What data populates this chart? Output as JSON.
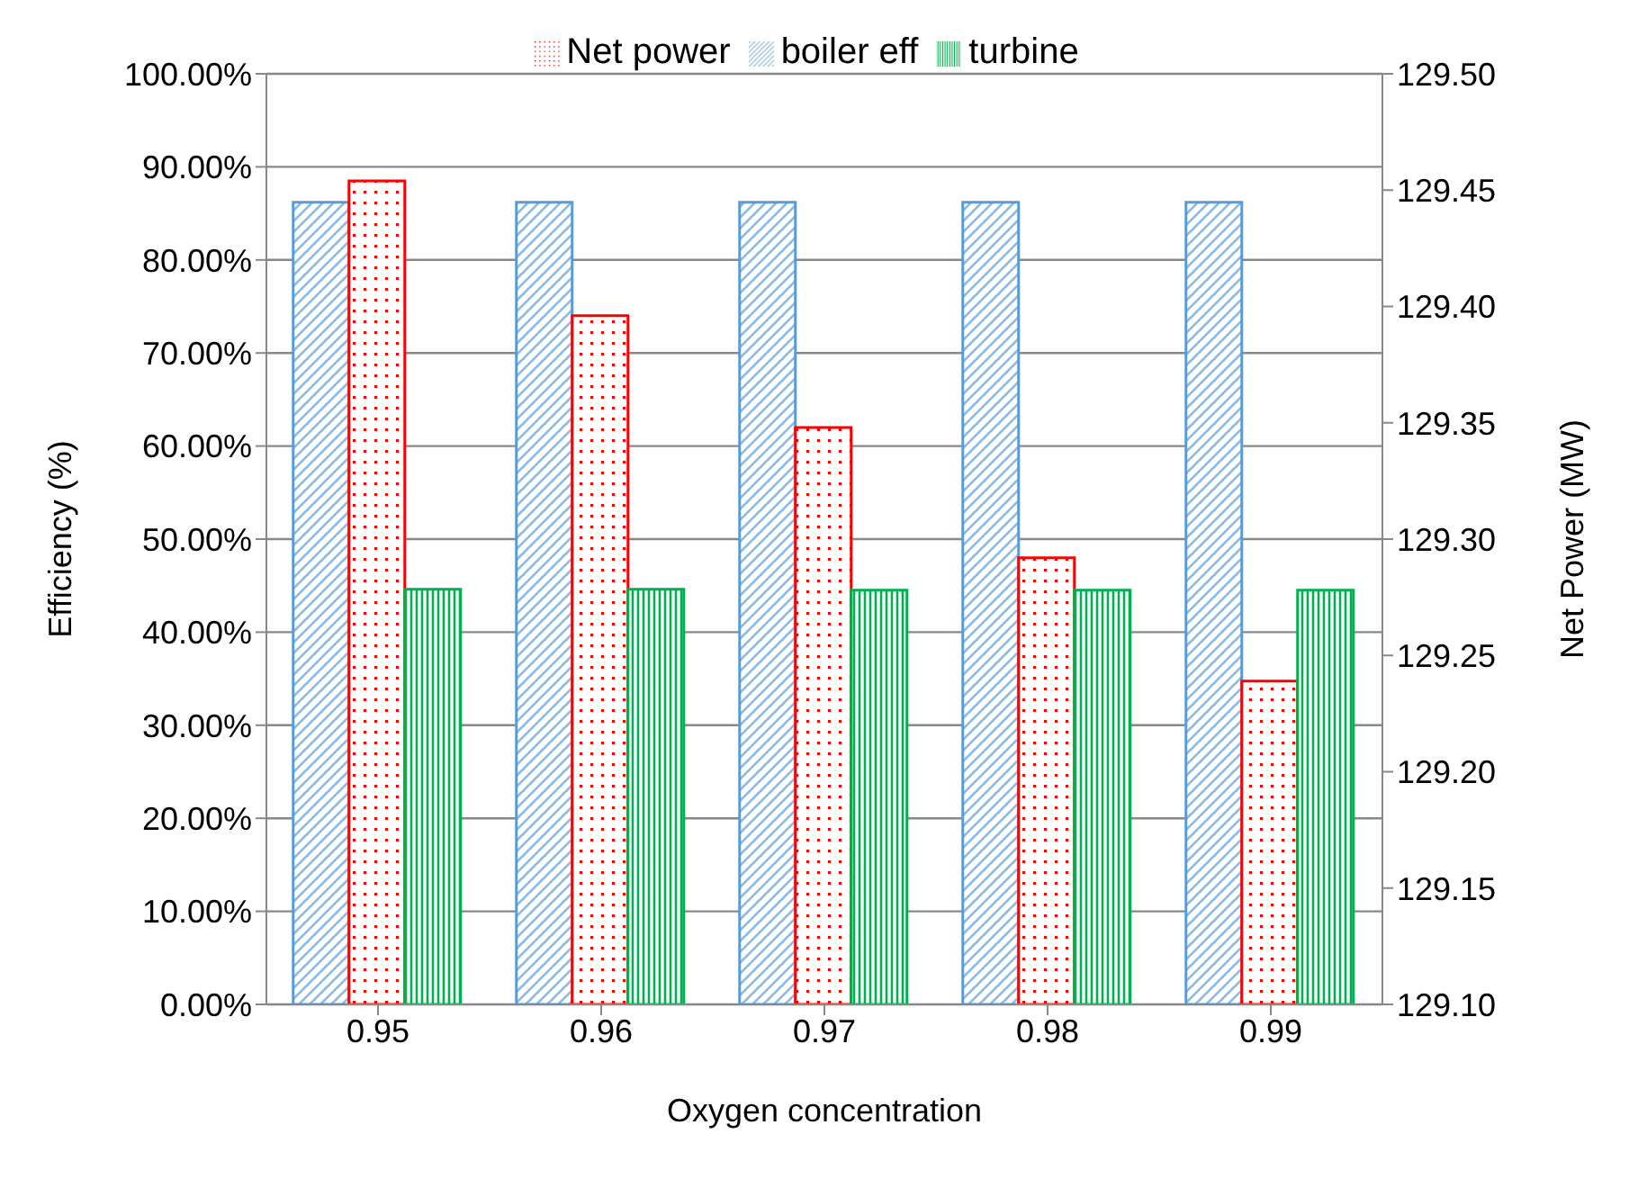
{
  "chart_data": {
    "type": "bar",
    "xlabel": "Oxygen concentration",
    "ylabel": "Efficiency (%)",
    "y2label": "Net Power (MW)",
    "categories": [
      "0.95",
      "0.96",
      "0.97",
      "0.98",
      "0.99"
    ],
    "series": [
      {
        "name": "boiler eff",
        "color": "#5b9bd5",
        "values": [
          86.2,
          86.2,
          86.2,
          86.2,
          86.2
        ]
      },
      {
        "name": "Net power",
        "color": "#ff0000",
        "axis": "y2",
        "values": [
          129.454,
          129.396,
          129.348,
          129.292,
          129.239
        ]
      },
      {
        "name": "turbine",
        "color": "#00b050",
        "values": [
          44.6,
          44.6,
          44.5,
          44.5,
          44.5
        ]
      }
    ],
    "ylim": [
      0,
      100
    ],
    "yticks": [
      {
        "value": 0,
        "label": "0.00%"
      },
      {
        "value": 10,
        "label": "10.00%"
      },
      {
        "value": 20,
        "label": "20.00%"
      },
      {
        "value": 30,
        "label": "30.00%"
      },
      {
        "value": 40,
        "label": "40.00%"
      },
      {
        "value": 50,
        "label": "50.00%"
      },
      {
        "value": 60,
        "label": "60.00%"
      },
      {
        "value": 70,
        "label": "70.00%"
      },
      {
        "value": 80,
        "label": "80.00%"
      },
      {
        "value": 90,
        "label": "90.00%"
      },
      {
        "value": 100,
        "label": "100.00%"
      }
    ],
    "y2lim": [
      129.1,
      129.5
    ],
    "y2ticks": [
      {
        "value": 129.1,
        "label": "129.10"
      },
      {
        "value": 129.15,
        "label": "129.15"
      },
      {
        "value": 129.2,
        "label": "129.20"
      },
      {
        "value": 129.25,
        "label": "129.25"
      },
      {
        "value": 129.3,
        "label": "129.30"
      },
      {
        "value": 129.35,
        "label": "129.35"
      },
      {
        "value": 129.4,
        "label": "129.40"
      },
      {
        "value": 129.45,
        "label": "129.45"
      },
      {
        "value": 129.5,
        "label": "129.50"
      }
    ],
    "grid": "y",
    "legend": "top"
  }
}
